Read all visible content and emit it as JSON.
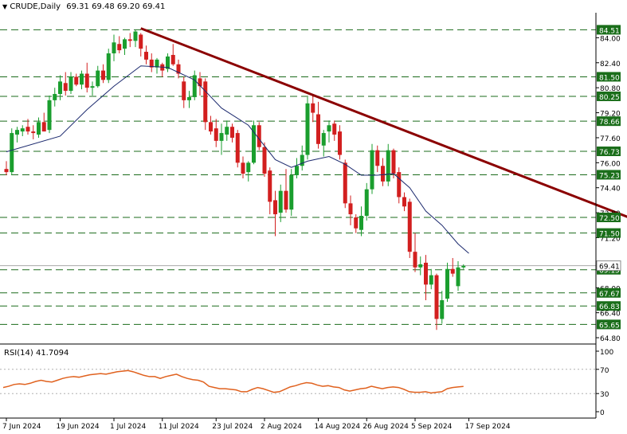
{
  "header": {
    "symbol": "CRUDE,Daily",
    "ohlc": "69.31 69.48 69.20 69.41",
    "rsi_label": "RSI(14) 41.7094"
  },
  "colors": {
    "bull": "#1a9e2e",
    "bear": "#d21f1f",
    "level_line": "#1b6b1b",
    "label_bg": "#1a6e1a",
    "trendline": "#8b0000",
    "ma": "#1c2a6e",
    "rsi": "#e0611e",
    "price_label_bg": "#ffffff",
    "axis": "#000000"
  },
  "chart_data": [
    {
      "type": "candlestick",
      "title": "CRUDE,Daily",
      "ylim": [
        64.6,
        85.6
      ],
      "y_ticks": [
        84.0,
        82.4,
        80.8,
        79.2,
        77.6,
        76.0,
        74.4,
        72.8,
        71.2,
        68.0,
        66.4,
        64.8
      ],
      "x_tick_labels": [
        "7 Jun 2024",
        "19 Jun 2024",
        "1 Jul 2024",
        "11 Jul 2024",
        "23 Jul 2024",
        "2 Aug 2024",
        "14 Aug 2024",
        "26 Aug 2024",
        "5 Sep 2024",
        "17 Sep 2024"
      ],
      "x_tick_index": [
        0,
        10,
        20,
        29,
        39,
        48,
        58,
        67,
        76,
        86
      ],
      "levels": [
        84.51,
        81.5,
        80.25,
        78.66,
        76.73,
        75.23,
        72.5,
        71.5,
        69.15,
        67.67,
        66.83,
        65.65
      ],
      "level_labels": [
        "84.51",
        "81.50",
        "80.25",
        "78.66",
        "76.73",
        "75.23",
        "72.50",
        "71.50",
        "69.15",
        "67.67",
        "66.83",
        "65.65"
      ],
      "current_price": 69.41,
      "current_price_label": "69.41",
      "trendline": [
        {
          "x": 25,
          "y": 84.6
        },
        {
          "x": 130,
          "y": 70.6
        }
      ],
      "candles": [
        {
          "o": 75.6,
          "h": 76.1,
          "l": 75.2,
          "c": 75.4
        },
        {
          "o": 75.4,
          "h": 78.2,
          "l": 75.2,
          "c": 77.9
        },
        {
          "o": 77.8,
          "h": 78.3,
          "l": 77.3,
          "c": 78.1
        },
        {
          "o": 78.0,
          "h": 78.4,
          "l": 77.7,
          "c": 78.2
        },
        {
          "o": 78.3,
          "h": 78.8,
          "l": 77.8,
          "c": 78.0
        },
        {
          "o": 78.0,
          "h": 78.4,
          "l": 77.5,
          "c": 77.9
        },
        {
          "o": 77.8,
          "h": 78.9,
          "l": 77.6,
          "c": 78.6
        },
        {
          "o": 78.6,
          "h": 79.2,
          "l": 78.0,
          "c": 78.0
        },
        {
          "o": 78.1,
          "h": 80.3,
          "l": 77.9,
          "c": 80.0
        },
        {
          "o": 80.0,
          "h": 80.8,
          "l": 79.6,
          "c": 80.4
        },
        {
          "o": 80.4,
          "h": 81.6,
          "l": 80.0,
          "c": 81.2
        },
        {
          "o": 81.1,
          "h": 81.8,
          "l": 80.3,
          "c": 80.6
        },
        {
          "o": 80.6,
          "h": 81.8,
          "l": 80.4,
          "c": 81.5
        },
        {
          "o": 81.5,
          "h": 81.7,
          "l": 80.9,
          "c": 81.0
        },
        {
          "o": 81.0,
          "h": 81.9,
          "l": 80.7,
          "c": 81.7
        },
        {
          "o": 81.7,
          "h": 82.4,
          "l": 80.5,
          "c": 80.8
        },
        {
          "o": 80.8,
          "h": 81.2,
          "l": 80.3,
          "c": 80.9
        },
        {
          "o": 80.9,
          "h": 82.2,
          "l": 80.8,
          "c": 81.9
        },
        {
          "o": 81.9,
          "h": 82.3,
          "l": 81.1,
          "c": 81.3
        },
        {
          "o": 81.3,
          "h": 83.3,
          "l": 81.1,
          "c": 83.0
        },
        {
          "o": 83.0,
          "h": 84.2,
          "l": 82.5,
          "c": 83.7
        },
        {
          "o": 83.6,
          "h": 84.1,
          "l": 83.0,
          "c": 83.2
        },
        {
          "o": 83.3,
          "h": 84.0,
          "l": 82.9,
          "c": 83.9
        },
        {
          "o": 83.9,
          "h": 84.3,
          "l": 83.4,
          "c": 83.8
        },
        {
          "o": 83.8,
          "h": 84.5,
          "l": 83.4,
          "c": 84.4
        },
        {
          "o": 84.2,
          "h": 84.3,
          "l": 82.8,
          "c": 83.3
        },
        {
          "o": 83.1,
          "h": 83.5,
          "l": 82.3,
          "c": 82.6
        },
        {
          "o": 82.6,
          "h": 83.0,
          "l": 81.8,
          "c": 82.1
        },
        {
          "o": 82.1,
          "h": 82.7,
          "l": 81.7,
          "c": 82.6
        },
        {
          "o": 82.3,
          "h": 82.4,
          "l": 81.5,
          "c": 81.9
        },
        {
          "o": 82.0,
          "h": 83.0,
          "l": 81.8,
          "c": 82.8
        },
        {
          "o": 82.9,
          "h": 83.6,
          "l": 82.2,
          "c": 82.3
        },
        {
          "o": 82.3,
          "h": 82.6,
          "l": 81.4,
          "c": 81.7
        },
        {
          "o": 81.2,
          "h": 81.5,
          "l": 79.5,
          "c": 80.0
        },
        {
          "o": 80.0,
          "h": 80.6,
          "l": 79.5,
          "c": 80.2
        },
        {
          "o": 80.2,
          "h": 81.9,
          "l": 80.0,
          "c": 81.6
        },
        {
          "o": 81.4,
          "h": 81.8,
          "l": 80.3,
          "c": 80.9
        },
        {
          "o": 81.2,
          "h": 81.4,
          "l": 78.1,
          "c": 78.6
        },
        {
          "o": 78.6,
          "h": 79.0,
          "l": 77.8,
          "c": 78.0
        },
        {
          "o": 78.2,
          "h": 78.8,
          "l": 77.0,
          "c": 77.4
        },
        {
          "o": 77.4,
          "h": 78.5,
          "l": 76.5,
          "c": 77.9
        },
        {
          "o": 77.8,
          "h": 78.7,
          "l": 77.4,
          "c": 78.3
        },
        {
          "o": 78.3,
          "h": 78.5,
          "l": 77.3,
          "c": 77.6
        },
        {
          "o": 77.9,
          "h": 78.1,
          "l": 75.7,
          "c": 76.0
        },
        {
          "o": 76.0,
          "h": 76.4,
          "l": 75.0,
          "c": 75.3
        },
        {
          "o": 75.4,
          "h": 76.1,
          "l": 74.8,
          "c": 76.0
        },
        {
          "o": 76.0,
          "h": 78.7,
          "l": 75.9,
          "c": 78.4
        },
        {
          "o": 78.4,
          "h": 78.6,
          "l": 76.8,
          "c": 77.0
        },
        {
          "o": 77.0,
          "h": 77.3,
          "l": 75.1,
          "c": 75.3
        },
        {
          "o": 75.5,
          "h": 75.7,
          "l": 72.7,
          "c": 73.5
        },
        {
          "o": 73.6,
          "h": 74.2,
          "l": 71.3,
          "c": 72.7
        },
        {
          "o": 72.8,
          "h": 74.6,
          "l": 72.2,
          "c": 74.2
        },
        {
          "o": 74.2,
          "h": 75.6,
          "l": 72.8,
          "c": 73.0
        },
        {
          "o": 73.0,
          "h": 75.6,
          "l": 72.6,
          "c": 75.2
        },
        {
          "o": 75.2,
          "h": 76.3,
          "l": 75.0,
          "c": 75.8
        },
        {
          "o": 75.8,
          "h": 77.1,
          "l": 75.5,
          "c": 76.5
        },
        {
          "o": 76.5,
          "h": 80.2,
          "l": 76.2,
          "c": 79.8
        },
        {
          "o": 79.8,
          "h": 80.3,
          "l": 78.6,
          "c": 79.2
        },
        {
          "o": 79.1,
          "h": 79.9,
          "l": 76.9,
          "c": 77.2
        },
        {
          "o": 77.1,
          "h": 78.1,
          "l": 76.4,
          "c": 77.9
        },
        {
          "o": 78.0,
          "h": 78.7,
          "l": 77.3,
          "c": 78.4
        },
        {
          "o": 78.5,
          "h": 78.7,
          "l": 77.4,
          "c": 77.8
        },
        {
          "o": 78.0,
          "h": 78.4,
          "l": 76.2,
          "c": 76.5
        },
        {
          "o": 76.0,
          "h": 76.2,
          "l": 73.1,
          "c": 73.4
        },
        {
          "o": 73.4,
          "h": 73.9,
          "l": 72.0,
          "c": 72.7
        },
        {
          "o": 72.5,
          "h": 72.7,
          "l": 71.5,
          "c": 71.8
        },
        {
          "o": 71.7,
          "h": 73.2,
          "l": 71.3,
          "c": 72.6
        },
        {
          "o": 72.6,
          "h": 74.7,
          "l": 72.3,
          "c": 74.3
        },
        {
          "o": 74.3,
          "h": 77.2,
          "l": 74.0,
          "c": 76.8
        },
        {
          "o": 76.8,
          "h": 77.1,
          "l": 75.4,
          "c": 75.8
        },
        {
          "o": 75.8,
          "h": 76.3,
          "l": 74.5,
          "c": 74.8
        },
        {
          "o": 74.8,
          "h": 77.2,
          "l": 74.5,
          "c": 76.8
        },
        {
          "o": 76.8,
          "h": 76.9,
          "l": 75.0,
          "c": 75.3
        },
        {
          "o": 75.4,
          "h": 75.7,
          "l": 73.4,
          "c": 73.8
        },
        {
          "o": 73.8,
          "h": 74.1,
          "l": 72.9,
          "c": 73.2
        },
        {
          "o": 73.5,
          "h": 73.7,
          "l": 69.9,
          "c": 70.3
        },
        {
          "o": 70.3,
          "h": 71.5,
          "l": 69.0,
          "c": 69.3
        },
        {
          "o": 69.3,
          "h": 70.0,
          "l": 68.8,
          "c": 69.5
        },
        {
          "o": 69.6,
          "h": 70.1,
          "l": 67.2,
          "c": 68.2
        },
        {
          "o": 68.2,
          "h": 69.2,
          "l": 67.9,
          "c": 68.8
        },
        {
          "o": 68.8,
          "h": 68.9,
          "l": 65.3,
          "c": 66.0
        },
        {
          "o": 66.0,
          "h": 67.8,
          "l": 65.7,
          "c": 67.2
        },
        {
          "o": 67.3,
          "h": 69.6,
          "l": 67.1,
          "c": 69.2
        },
        {
          "o": 69.2,
          "h": 69.9,
          "l": 68.7,
          "c": 68.9
        },
        {
          "o": 68.1,
          "h": 69.7,
          "l": 67.8,
          "c": 69.3
        },
        {
          "o": 69.3,
          "h": 69.5,
          "l": 69.2,
          "c": 69.4
        }
      ],
      "ma": [
        {
          "x": 0,
          "y": 76.7
        },
        {
          "x": 10,
          "y": 77.7
        },
        {
          "x": 15,
          "y": 79.4
        },
        {
          "x": 20,
          "y": 80.9
        },
        {
          "x": 25,
          "y": 82.2
        },
        {
          "x": 30,
          "y": 82.1
        },
        {
          "x": 35,
          "y": 81.3
        },
        {
          "x": 40,
          "y": 79.5
        },
        {
          "x": 45,
          "y": 78.4
        },
        {
          "x": 50,
          "y": 76.2
        },
        {
          "x": 53,
          "y": 75.7
        },
        {
          "x": 56,
          "y": 76.1
        },
        {
          "x": 60,
          "y": 76.4
        },
        {
          "x": 63,
          "y": 75.9
        },
        {
          "x": 66,
          "y": 75.2
        },
        {
          "x": 69,
          "y": 75.2
        },
        {
          "x": 72,
          "y": 75.3
        },
        {
          "x": 75,
          "y": 74.4
        },
        {
          "x": 78,
          "y": 72.9
        },
        {
          "x": 81,
          "y": 72.0
        },
        {
          "x": 84,
          "y": 70.8
        },
        {
          "x": 86,
          "y": 70.2
        }
      ]
    },
    {
      "type": "line",
      "title": "RSI(14) 41.7094",
      "ylim": [
        0,
        100
      ],
      "y_ticks": [
        100,
        70,
        30,
        0
      ],
      "levels": [
        70,
        30
      ],
      "values": [
        40,
        42,
        45,
        46,
        45,
        47,
        50,
        52,
        50,
        49,
        52,
        55,
        57,
        58,
        57,
        59,
        61,
        62,
        63,
        62,
        64,
        66,
        67,
        68,
        66,
        63,
        60,
        58,
        58,
        55,
        58,
        60,
        62,
        58,
        55,
        53,
        52,
        49,
        42,
        40,
        38,
        38,
        37,
        36,
        33,
        33,
        37,
        40,
        38,
        35,
        32,
        33,
        37,
        41,
        43,
        46,
        48,
        47,
        44,
        42,
        43,
        41,
        40,
        36,
        34,
        36,
        38,
        39,
        42,
        40,
        38,
        40,
        41,
        40,
        37,
        33,
        32,
        32,
        33,
        31,
        32,
        33,
        38,
        40,
        41,
        41.7
      ]
    }
  ]
}
